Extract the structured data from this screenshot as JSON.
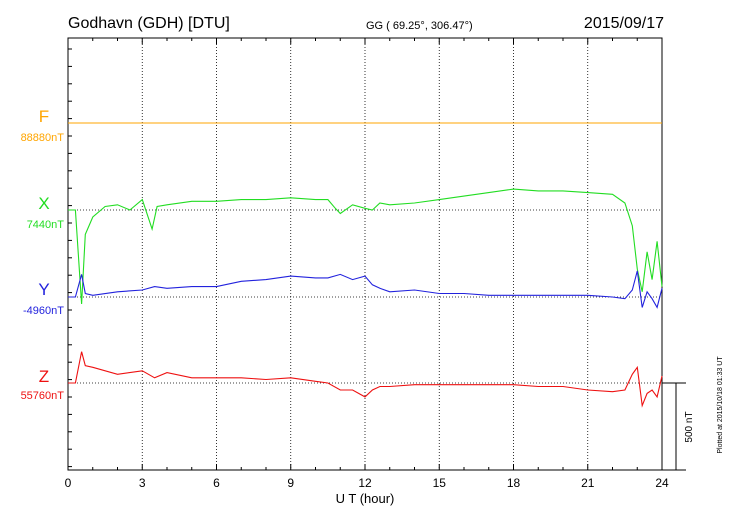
{
  "header": {
    "station": "Godhavn (GDH)  [DTU]",
    "coords": "GG ( 69.25°, 306.47°)",
    "date": "2015/09/17"
  },
  "footer_note": "Plotted at 2015/10/18 01:33 UT",
  "scale_bar_label": "500 nT",
  "chart_data": {
    "type": "line",
    "xlabel": "U T (hour)",
    "xlim": [
      0,
      24
    ],
    "xticks": [
      0,
      3,
      6,
      9,
      12,
      15,
      18,
      21,
      24
    ],
    "grid": true,
    "scale_bar_nT": 500,
    "series": [
      {
        "name": "F",
        "baseline_label": "88880nT",
        "color": "#ffa500",
        "x": [
          0,
          24
        ],
        "values": [
          88880,
          88880
        ]
      },
      {
        "name": "X",
        "baseline_label": "7440nT",
        "color": "#22dd22",
        "x": [
          0,
          0.3,
          0.55,
          0.7,
          1,
          1.5,
          2,
          2.5,
          3,
          3.4,
          3.6,
          4,
          5,
          6,
          7,
          8,
          9,
          10,
          10.5,
          10.8,
          11,
          11.5,
          12,
          12.3,
          12.6,
          13,
          14,
          15,
          16,
          17,
          18,
          19,
          20,
          21,
          22,
          22.5,
          22.8,
          23,
          23.2,
          23.4,
          23.6,
          23.8,
          24
        ],
        "values": [
          7440,
          7440,
          6900,
          7300,
          7400,
          7460,
          7470,
          7440,
          7500,
          7330,
          7460,
          7470,
          7490,
          7490,
          7500,
          7500,
          7510,
          7500,
          7500,
          7450,
          7420,
          7470,
          7450,
          7440,
          7480,
          7470,
          7480,
          7500,
          7520,
          7540,
          7560,
          7550,
          7550,
          7540,
          7530,
          7480,
          7350,
          7100,
          6970,
          7200,
          7040,
          7260,
          7000
        ]
      },
      {
        "name": "Y",
        "baseline_label": "-4960nT",
        "color": "#2222dd",
        "x": [
          0,
          0.3,
          0.55,
          0.7,
          1,
          2,
          3,
          3.5,
          4,
          5,
          6,
          7,
          8,
          9,
          10,
          10.5,
          11,
          11.5,
          12,
          12.3,
          12.6,
          13,
          14,
          15,
          16,
          17,
          18,
          19,
          20,
          21,
          22,
          22.5,
          22.8,
          23,
          23.2,
          23.4,
          23.6,
          23.8,
          24
        ],
        "values": [
          -4990,
          -4990,
          -4860,
          -4970,
          -4980,
          -4960,
          -4950,
          -4930,
          -4940,
          -4930,
          -4930,
          -4900,
          -4890,
          -4870,
          -4880,
          -4880,
          -4860,
          -4890,
          -4870,
          -4920,
          -4940,
          -4960,
          -4950,
          -4970,
          -4970,
          -4980,
          -4980,
          -4980,
          -4980,
          -4980,
          -4990,
          -5000,
          -4950,
          -4840,
          -5050,
          -4960,
          -5000,
          -5050,
          -4940
        ]
      },
      {
        "name": "Z",
        "baseline_label": "55760nT",
        "color": "#ee1111",
        "x": [
          0,
          0.3,
          0.55,
          0.7,
          1,
          2,
          3,
          3.5,
          4,
          5,
          6,
          7,
          8,
          9,
          10,
          10.5,
          11,
          11.5,
          12,
          12.3,
          12.6,
          13,
          14,
          15,
          16,
          17,
          18,
          19,
          20,
          21,
          22,
          22.5,
          22.8,
          23,
          23.2,
          23.4,
          23.6,
          23.8,
          24
        ],
        "values": [
          55780,
          55780,
          55960,
          55880,
          55870,
          55830,
          55850,
          55810,
          55840,
          55810,
          55810,
          55810,
          55800,
          55810,
          55790,
          55780,
          55740,
          55740,
          55700,
          55740,
          55760,
          55760,
          55770,
          55770,
          55770,
          55770,
          55770,
          55760,
          55760,
          55740,
          55730,
          55740,
          55830,
          55870,
          55650,
          55720,
          55740,
          55700,
          55820
        ]
      }
    ]
  }
}
